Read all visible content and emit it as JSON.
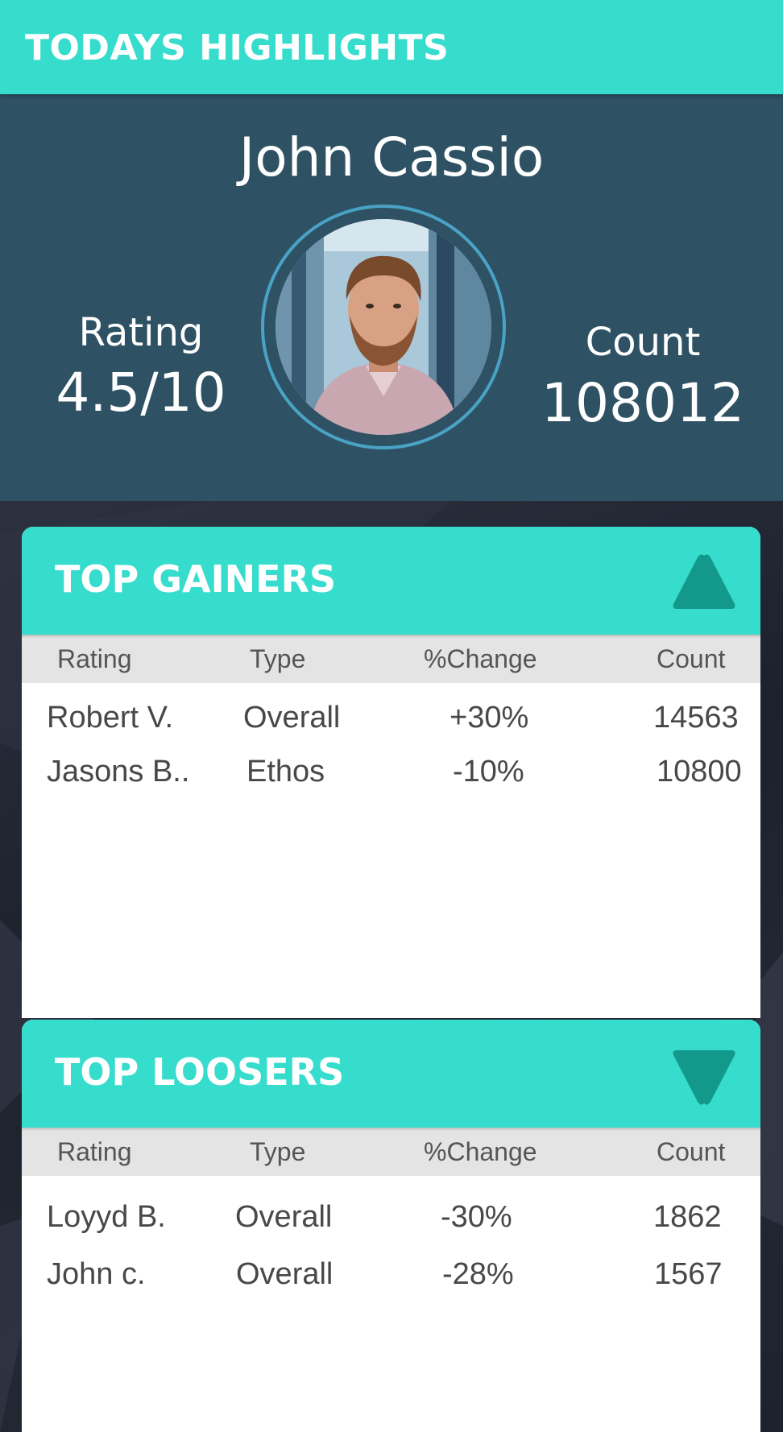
{
  "header": {
    "title": "TODAYS HIGHLIGHTS"
  },
  "profile": {
    "name": "John Cassio",
    "rating_label": "Rating",
    "rating_value": "4.5/10",
    "count_label": "Count",
    "count_value": "108012"
  },
  "columns": {
    "rating": "Rating",
    "type": "Type",
    "change": "%Change",
    "count": "Count"
  },
  "gainers": {
    "title": "TOP GAINERS",
    "icon": "triangle-up-icon",
    "rows": [
      {
        "name": "Robert V.",
        "type": "Overall",
        "change": "+30%",
        "count": "14563"
      },
      {
        "name": "Jasons B..",
        "type": "Ethos",
        "change": "-10%",
        "count": "10800"
      }
    ]
  },
  "losers": {
    "title": "TOP LOOSERS",
    "icon": "triangle-down-icon",
    "rows": [
      {
        "name": "Loyyd B.",
        "type": "Overall",
        "change": "-30%",
        "count": "1862"
      },
      {
        "name": "John c.",
        "type": "Overall",
        "change": "-28%",
        "count": "1567"
      }
    ]
  },
  "colors": {
    "accent": "#36dccc",
    "accent_dark": "#13998b",
    "hero_bg": "#2e5264",
    "ring": "#4aa3c6"
  }
}
